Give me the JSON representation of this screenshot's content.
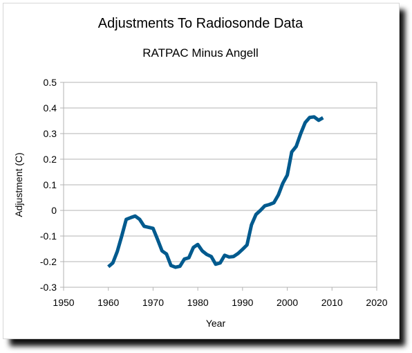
{
  "chart_data": {
    "type": "line",
    "title": "Adjustments To Radiosonde Data",
    "subtitle": "RATPAC Minus Angell",
    "xlabel": "Year",
    "ylabel": "Adjustment (C)",
    "xlim": [
      1950,
      2020
    ],
    "ylim": [
      -0.3,
      0.5
    ],
    "xticks": [
      "1950",
      "1960",
      "1970",
      "1980",
      "1990",
      "2000",
      "2010",
      "2020"
    ],
    "yticks": [
      "0.5",
      "0.4",
      "0.3",
      "0.2",
      "0.1",
      "0",
      "-0.1",
      "-0.2",
      "-0.3"
    ],
    "grid": "horizontal",
    "color": "#005a8e",
    "series": [
      {
        "x": [
          1960,
          1961,
          1962,
          1963,
          1964,
          1965,
          1966,
          1967,
          1968,
          1969,
          1970,
          1971,
          1972,
          1973,
          1974,
          1975,
          1976,
          1977,
          1978,
          1979,
          1980,
          1981,
          1982,
          1983,
          1984,
          1985,
          1986,
          1987,
          1988,
          1989,
          1990,
          1991,
          1992,
          1993,
          1994,
          1995,
          1996,
          1997,
          1998,
          1999,
          2000,
          2001,
          2002,
          2003,
          2004,
          2005,
          2006,
          2007,
          2008
        ],
        "values": [
          -0.22,
          -0.205,
          -0.16,
          -0.1,
          -0.035,
          -0.028,
          -0.022,
          -0.035,
          -0.062,
          -0.066,
          -0.07,
          -0.113,
          -0.158,
          -0.17,
          -0.215,
          -0.222,
          -0.218,
          -0.19,
          -0.185,
          -0.145,
          -0.133,
          -0.158,
          -0.172,
          -0.18,
          -0.21,
          -0.205,
          -0.175,
          -0.182,
          -0.18,
          -0.168,
          -0.152,
          -0.135,
          -0.056,
          -0.016,
          0.0,
          0.018,
          0.023,
          0.03,
          0.06,
          0.106,
          0.138,
          0.228,
          0.25,
          0.3,
          0.343,
          0.363,
          0.365,
          0.352,
          0.362
        ]
      }
    ]
  }
}
